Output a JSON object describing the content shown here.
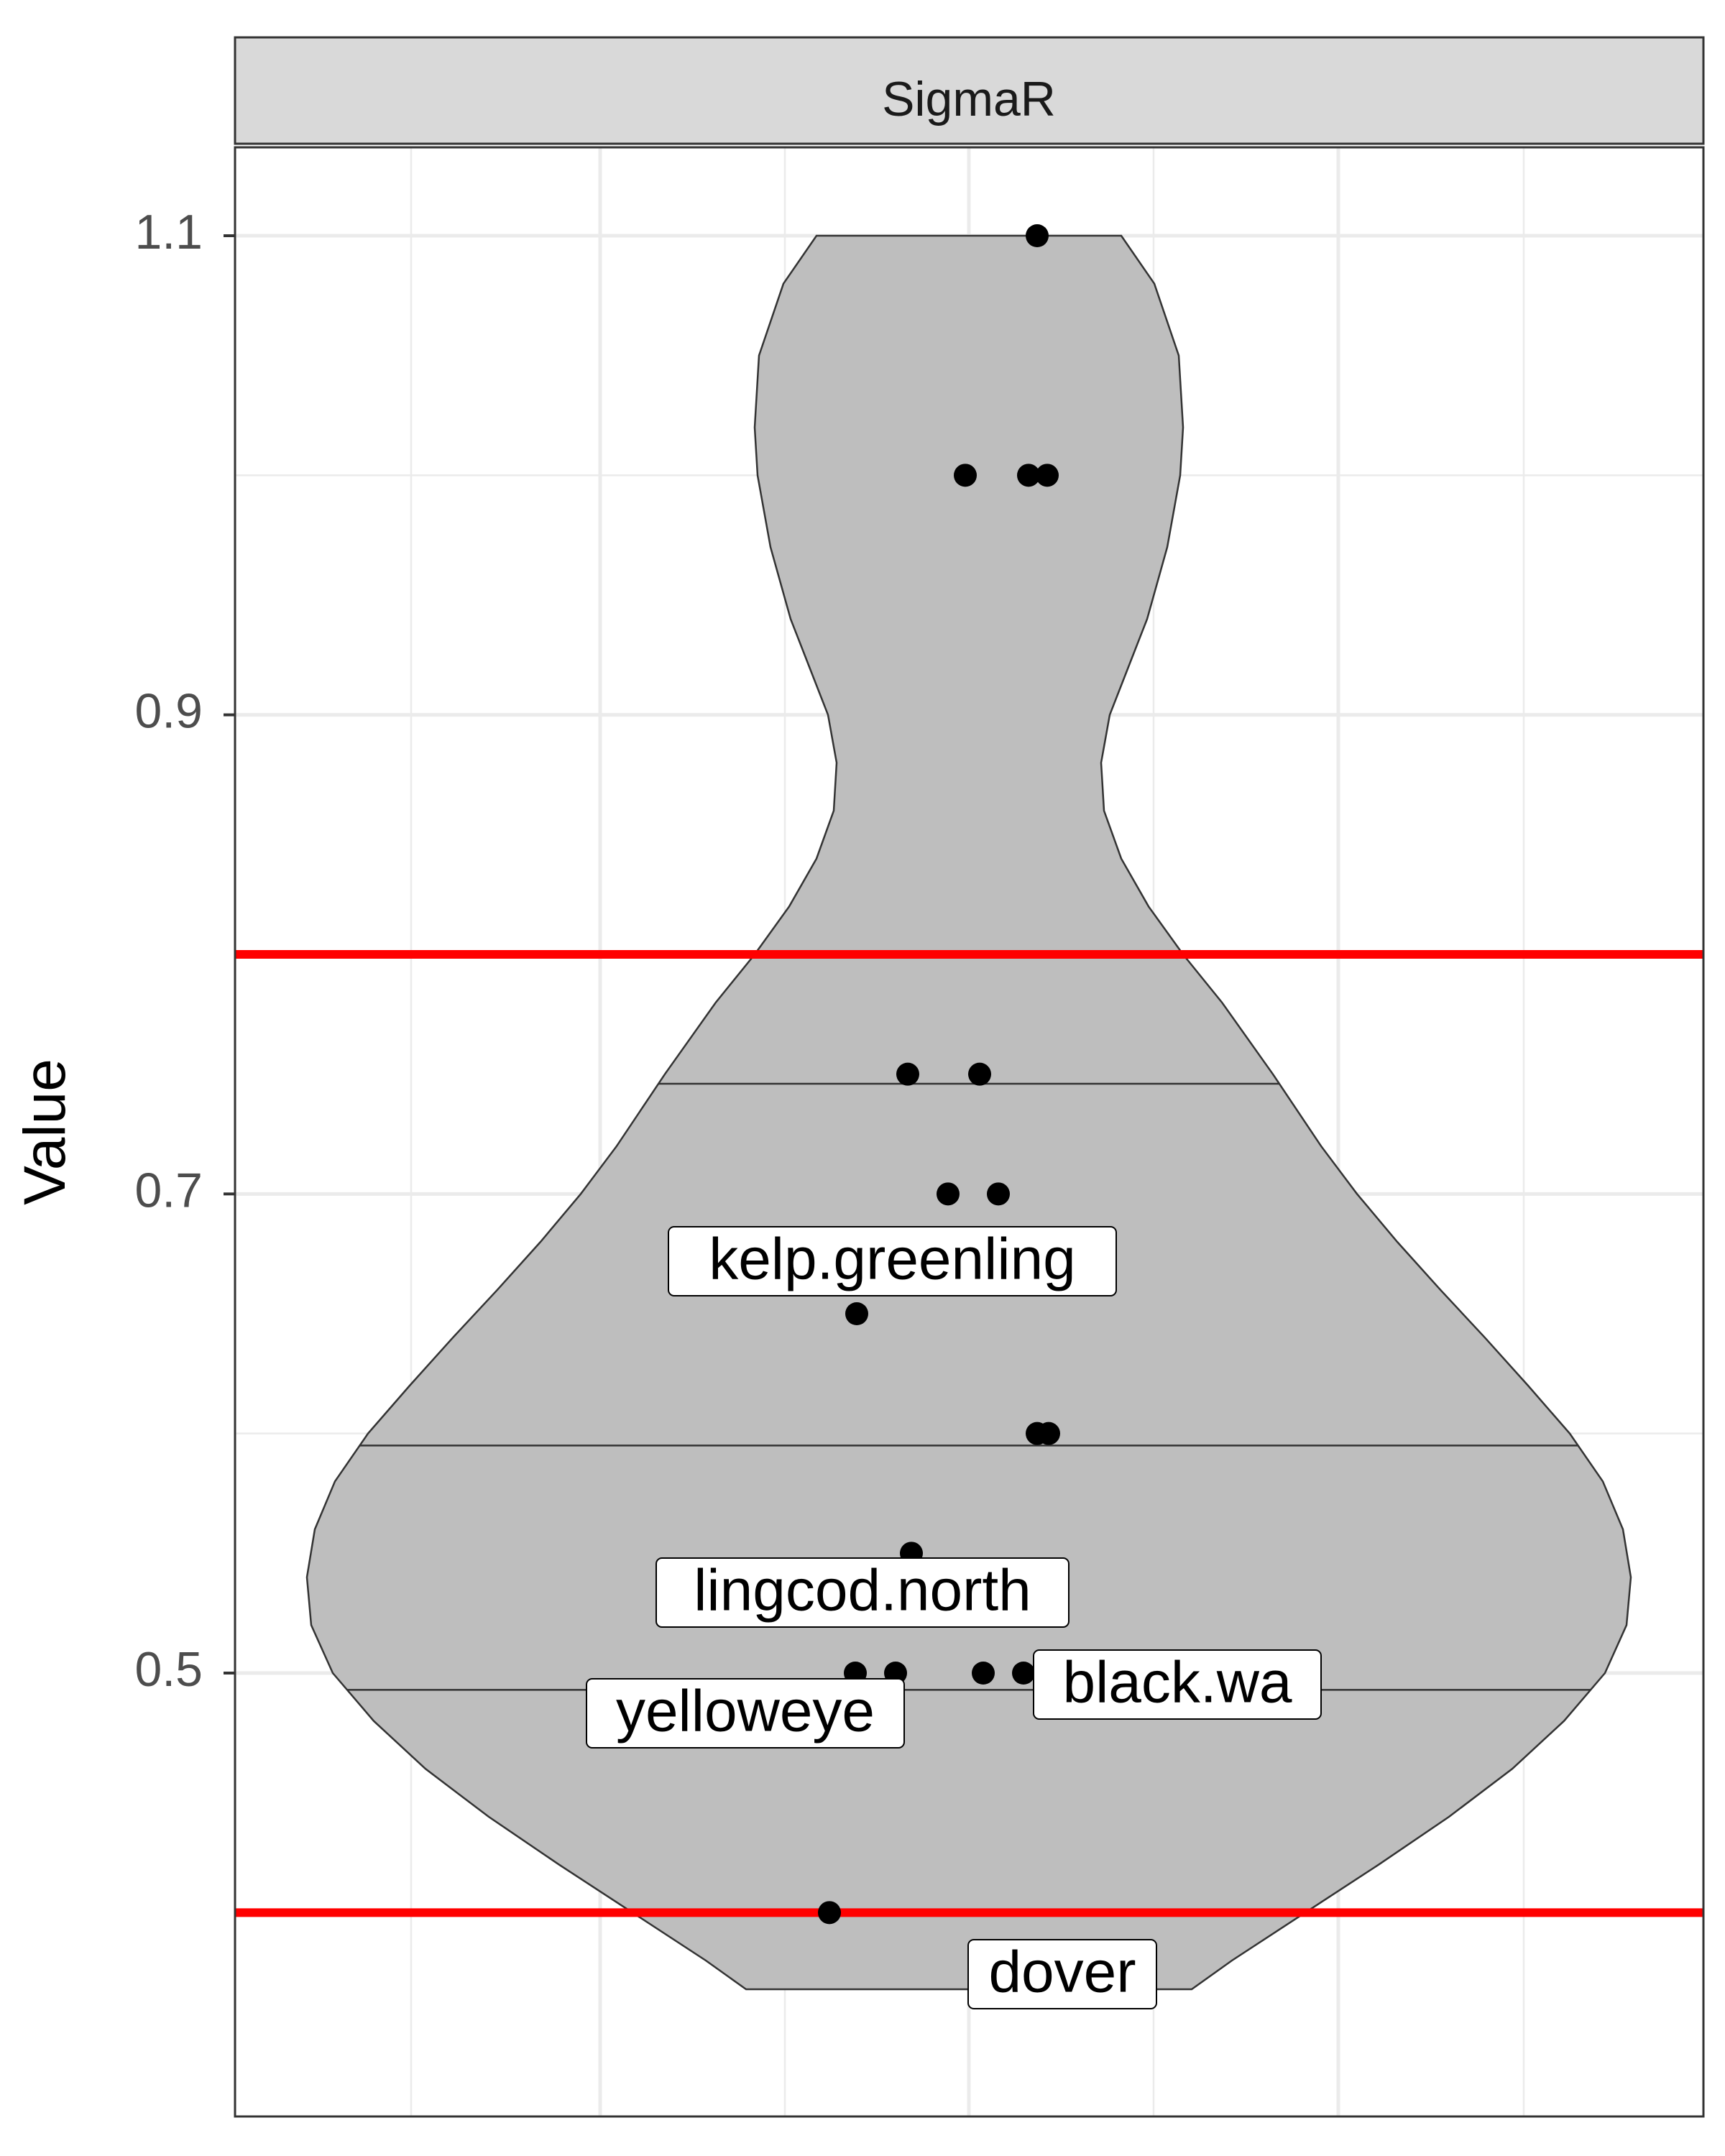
{
  "chart_data": {
    "type": "violin",
    "panel_title": "SigmaR",
    "title": "",
    "xlabel": "",
    "ylabel": "Value",
    "ylim": [
      0.34,
      1.135
    ],
    "y_ticks": [
      0.5,
      0.7,
      0.9,
      1.1
    ],
    "y_tick_labels": [
      "0.5",
      "0.7",
      "0.9",
      "1.1"
    ],
    "y_minor_gridlines": [
      0.6,
      0.8,
      1.0
    ],
    "grid": true,
    "quantiles": [
      0.493,
      0.595,
      0.746
    ],
    "reference_lines": [
      {
        "y": 0.4,
        "color": "#ff0000"
      },
      {
        "y": 0.8,
        "color": "#ff0000"
      }
    ],
    "points": [
      1.1,
      1.0,
      1.0,
      1.0,
      0.75,
      0.75,
      0.7,
      0.7,
      0.65,
      0.6,
      0.6,
      0.55,
      0.5,
      0.5,
      0.5,
      0.5,
      0.4,
      0.37
    ],
    "labels": [
      {
        "text": "kelp.greenling",
        "y": 0.65
      },
      {
        "text": "lingcod.north",
        "y": 0.55
      },
      {
        "text": "black.wa",
        "y": 0.5
      },
      {
        "text": "yelloweye",
        "y": 0.5
      },
      {
        "text": "dover",
        "y": 0.37
      }
    ],
    "violin_fill": "#bebebe",
    "violin_stroke": "#333333",
    "point_color": "#000000",
    "panel_strip_fill": "#d9d9d9",
    "grid_color": "#ebebeb"
  }
}
